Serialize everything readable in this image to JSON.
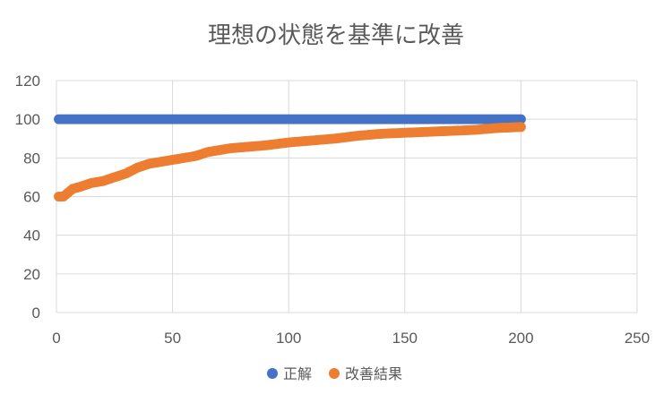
{
  "chart_data": {
    "type": "scatter",
    "title": "理想の状態を基準に改善",
    "xlabel": "",
    "ylabel": "",
    "xlim": [
      0,
      250
    ],
    "ylim": [
      0,
      120
    ],
    "x_ticks": [
      0,
      50,
      100,
      150,
      200,
      250
    ],
    "y_ticks": [
      0,
      20,
      40,
      60,
      80,
      100,
      120
    ],
    "grid": true,
    "legend_position": "bottom",
    "series": [
      {
        "name": "正解",
        "color": "#4472C4",
        "x_start": 1,
        "x_end": 200,
        "constant_y": 100
      },
      {
        "name": "改善結果",
        "color": "#ED7D31",
        "x_start": 1,
        "x_end": 200,
        "curve_anchors": [
          [
            1,
            60
          ],
          [
            3,
            60
          ],
          [
            4,
            61
          ],
          [
            7,
            64
          ],
          [
            10,
            65
          ],
          [
            15,
            67
          ],
          [
            20,
            68
          ],
          [
            25,
            70
          ],
          [
            30,
            72
          ],
          [
            35,
            75
          ],
          [
            40,
            77
          ],
          [
            45,
            78
          ],
          [
            50,
            79
          ],
          [
            55,
            80
          ],
          [
            60,
            81
          ],
          [
            65,
            83
          ],
          [
            70,
            84
          ],
          [
            75,
            85
          ],
          [
            80,
            85.5
          ],
          [
            90,
            86.5
          ],
          [
            100,
            88
          ],
          [
            110,
            89
          ],
          [
            120,
            90
          ],
          [
            130,
            91.5
          ],
          [
            140,
            92.5
          ],
          [
            150,
            93
          ],
          [
            160,
            93.5
          ],
          [
            170,
            94
          ],
          [
            180,
            94.5
          ],
          [
            190,
            95.5
          ],
          [
            200,
            96
          ]
        ]
      }
    ]
  }
}
